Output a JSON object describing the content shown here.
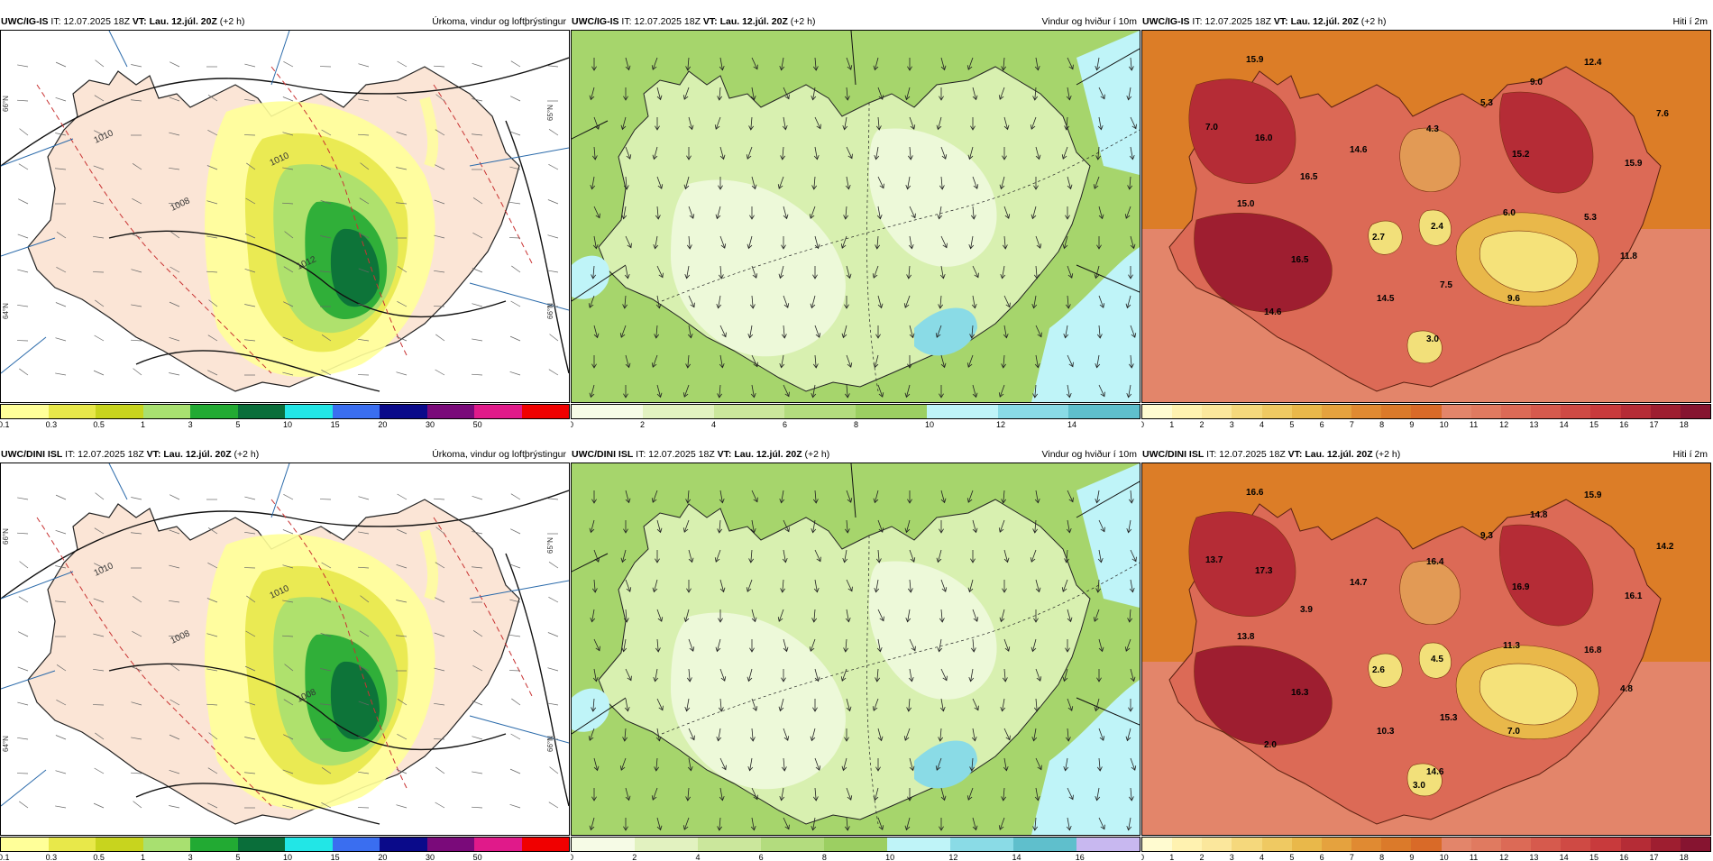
{
  "colors": {
    "land": "#fbe5d6",
    "sea": "#ffffff",
    "green_light": "#d8f0b0",
    "green_mid": "#a6d56c",
    "green_dark": "#6fb94a",
    "heat_low": "#f2e07a",
    "heat_mid": "#e29a55",
    "heat_high": "#c43a35",
    "heat_orange": "#dc7d27"
  },
  "panels": [
    {
      "id": "igis-precip",
      "model": "UWC/IG-IS",
      "kind": "precip",
      "it_text": "IT: 12.07.2025 18Z",
      "vt_label": "VT:",
      "vt_value": "Lau. 12.júl. 20Z",
      "lead": "(+2 h)",
      "title": "Úrkoma, vindur og loftþrýstingur",
      "isobar_labels": [
        "1010",
        "1008",
        "1010",
        "1012"
      ],
      "lat_labels": [
        "66°N",
        "64°N",
        "65°N",
        "66°N"
      ],
      "colorbar": {
        "ticks": [
          "0.1",
          "0.3",
          "0.5",
          "1",
          "3",
          "5",
          "10",
          "15",
          "20",
          "30",
          "50"
        ],
        "colors": [
          "#ffff99",
          "#e8e84a",
          "#c8d41e",
          "#a8e070",
          "#22aa33",
          "#0a6e3a",
          "#22e6e6",
          "#3a6ef0",
          "#0a0a8a",
          "#7a0a7a",
          "#e01a8a",
          "#f00000"
        ]
      }
    },
    {
      "id": "igis-wind",
      "model": "UWC/IG-IS",
      "kind": "wind",
      "it_text": "IT: 12.07.2025 18Z",
      "vt_label": "VT:",
      "vt_value": "Lau. 12.júl. 20Z",
      "lead": "(+2 h)",
      "title": "Vindur og hviður í 10m",
      "colorbar": {
        "ticks": [
          "0",
          "2",
          "4",
          "6",
          "8",
          "10",
          "12",
          "14"
        ],
        "colors": [
          "#f6fbe6",
          "#e2f2c0",
          "#cbe79c",
          "#b3dc7e",
          "#9ccf62",
          "#bff4f8",
          "#8adbe6",
          "#5fbfcc"
        ]
      }
    },
    {
      "id": "igis-temp",
      "model": "UWC/IG-IS",
      "kind": "temp",
      "it_text": "IT: 12.07.2025 18Z",
      "vt_label": "VT:",
      "vt_value": "Lau. 12.júl. 20Z",
      "lead": "(+2 h)",
      "title": "Hiti í 2m",
      "temp_labels": [
        "15.9",
        "12.4",
        "9.0",
        "7.6",
        "5.3",
        "7.0",
        "16.0",
        "14.6",
        "4.3",
        "15.2",
        "15.9",
        "16.5",
        "15.0",
        "6.0",
        "5.3",
        "2.7",
        "2.4",
        "16.5",
        "11.8",
        "14.5",
        "7.5",
        "9.6",
        "14.6",
        "3.0"
      ],
      "colorbar": {
        "ticks": [
          "0",
          "1",
          "2",
          "3",
          "4",
          "5",
          "6",
          "7",
          "8",
          "9",
          "10",
          "11",
          "12",
          "13",
          "14",
          "15",
          "16",
          "17",
          "18"
        ],
        "colors": [
          "#fffbd0",
          "#fff2b0",
          "#fbe79c",
          "#f5d87c",
          "#efc962",
          "#e9b84a",
          "#e5a23e",
          "#e08a32",
          "#db7a2a",
          "#d96a28",
          "#e3856a",
          "#e07a60",
          "#dc6a56",
          "#d65a4d",
          "#cf4a44",
          "#c83a3c",
          "#b52c36",
          "#9e1e30",
          "#861430"
        ]
      }
    },
    {
      "id": "dini-precip",
      "model": "UWC/DINI ISL",
      "kind": "precip",
      "it_text": "IT: 12.07.2025 18Z",
      "vt_label": "VT:",
      "vt_value": "Lau. 12.júl. 20Z",
      "lead": "(+2 h)",
      "title": "Úrkoma, vindur og loftþrýstingur",
      "isobar_labels": [
        "1010",
        "1008",
        "1010",
        "1008"
      ],
      "lat_labels": [
        "66°N",
        "64°N",
        "65°N",
        "66°N"
      ],
      "colorbar": {
        "ticks": [
          "0.1",
          "0.3",
          "0.5",
          "1",
          "3",
          "5",
          "10",
          "15",
          "20",
          "30",
          "50"
        ],
        "colors": [
          "#ffff99",
          "#e8e84a",
          "#c8d41e",
          "#a8e070",
          "#22aa33",
          "#0a6e3a",
          "#22e6e6",
          "#3a6ef0",
          "#0a0a8a",
          "#7a0a7a",
          "#e01a8a",
          "#f00000"
        ]
      }
    },
    {
      "id": "dini-wind",
      "model": "UWC/DINI ISL",
      "kind": "wind",
      "it_text": "IT: 12.07.2025 18Z",
      "vt_label": "VT:",
      "vt_value": "Lau. 12.júl. 20Z",
      "lead": "(+2 h)",
      "title": "Vindur og hviður í 10m",
      "colorbar": {
        "ticks": [
          "0",
          "2",
          "4",
          "6",
          "8",
          "10",
          "12",
          "14",
          "16"
        ],
        "colors": [
          "#f6fbe6",
          "#e2f2c0",
          "#cbe79c",
          "#b3dc7e",
          "#9ccf62",
          "#bff4f8",
          "#8adbe6",
          "#5fbfcc",
          "#c8b8f0"
        ]
      }
    },
    {
      "id": "dini-temp",
      "model": "UWC/DINI ISL",
      "kind": "temp",
      "it_text": "IT: 12.07.2025 18Z",
      "vt_label": "VT:",
      "vt_value": "Lau. 12.júl. 20Z",
      "lead": "(+2 h)",
      "title": "Hiti í 2m",
      "temp_labels": [
        "16.6",
        "15.9",
        "14.8",
        "14.2",
        "9.3",
        "13.7",
        "17.3",
        "14.7",
        "16.4",
        "16.9",
        "16.1",
        "3.9",
        "13.8",
        "11.3",
        "16.8",
        "2.6",
        "4.5",
        "16.3",
        "4.8",
        "10.3",
        "15.3",
        "7.0",
        "2.0",
        "14.6",
        "3.0"
      ],
      "colorbar": {
        "ticks": [
          "0",
          "1",
          "2",
          "3",
          "4",
          "5",
          "6",
          "7",
          "8",
          "9",
          "10",
          "11",
          "12",
          "13",
          "14",
          "15",
          "16",
          "17",
          "18"
        ],
        "colors": [
          "#fffbd0",
          "#fff2b0",
          "#fbe79c",
          "#f5d87c",
          "#efc962",
          "#e9b84a",
          "#e5a23e",
          "#e08a32",
          "#db7a2a",
          "#d96a28",
          "#e3856a",
          "#e07a60",
          "#dc6a56",
          "#d65a4d",
          "#cf4a44",
          "#c83a3c",
          "#b52c36",
          "#9e1e30",
          "#861430"
        ]
      }
    }
  ]
}
